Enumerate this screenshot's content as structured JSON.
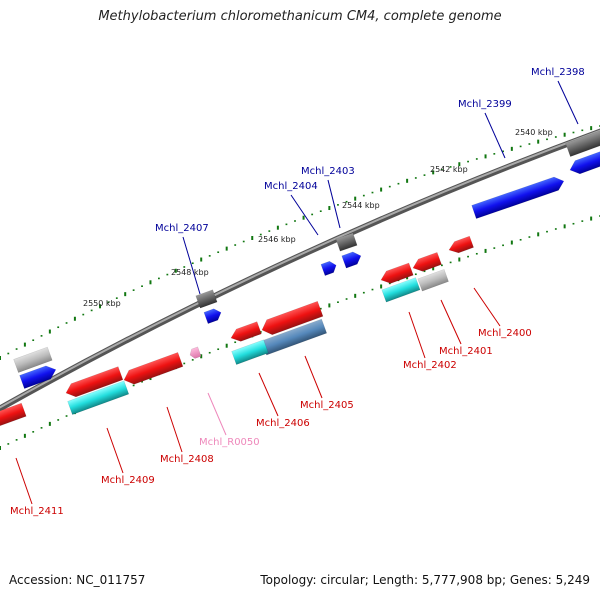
{
  "title": "Methylobacterium chloromethanicum CM4, complete genome",
  "footer": {
    "accession": "Accession: NC_011757",
    "summary": "Topology: circular; Length: 5,777,908 bp; Genes: 5,249"
  },
  "colors": {
    "forward_label": "#000099",
    "reverse_label": "#cc0000",
    "rna_label": "#ee88bb",
    "tick": "#117711"
  },
  "ticks": [
    {
      "label": "2540 kbp"
    },
    {
      "label": "2542 kbp"
    },
    {
      "label": "2544 kbp"
    },
    {
      "label": "2546 kbp"
    },
    {
      "label": "2548 kbp"
    },
    {
      "label": "2550 kbp"
    }
  ],
  "genes": [
    {
      "label": "Mchl_2398",
      "strand": "forward"
    },
    {
      "label": "Mchl_2399",
      "strand": "forward"
    },
    {
      "label": "Mchl_2403",
      "strand": "forward"
    },
    {
      "label": "Mchl_2404",
      "strand": "forward"
    },
    {
      "label": "Mchl_2407",
      "strand": "forward"
    },
    {
      "label": "Mchl_2400",
      "strand": "reverse"
    },
    {
      "label": "Mchl_2401",
      "strand": "reverse"
    },
    {
      "label": "Mchl_2402",
      "strand": "reverse"
    },
    {
      "label": "Mchl_2405",
      "strand": "reverse"
    },
    {
      "label": "Mchl_2406",
      "strand": "reverse"
    },
    {
      "label": "Mchl_R0050",
      "strand": "reverse"
    },
    {
      "label": "Mchl_2408",
      "strand": "reverse"
    },
    {
      "label": "Mchl_2409",
      "strand": "reverse"
    },
    {
      "label": "Mchl_2411",
      "strand": "reverse"
    }
  ]
}
